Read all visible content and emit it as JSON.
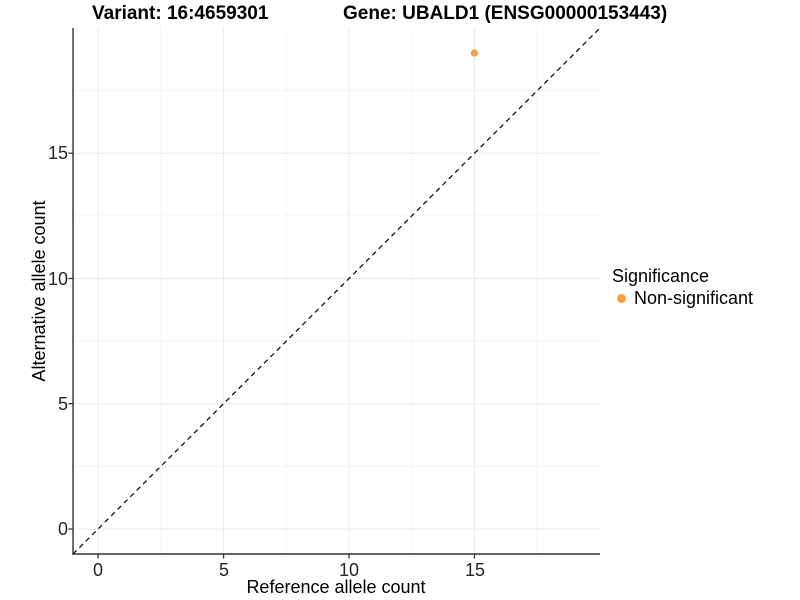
{
  "title": {
    "variant": "Variant: 16:4659301",
    "gene": "Gene: UBALD1 (ENSG00000153443)"
  },
  "axes": {
    "x": {
      "label": "Reference allele count",
      "ticks": [
        "0",
        "5",
        "10",
        "15"
      ]
    },
    "y": {
      "label": "Alternative allele count",
      "ticks": [
        "0",
        "5",
        "10",
        "15"
      ]
    }
  },
  "legend": {
    "title": "Significance",
    "items": [
      {
        "label": "Non-significant",
        "color": "#F9A242"
      }
    ]
  },
  "chart_data": {
    "type": "scatter",
    "title": "Variant: 16:4659301   Gene: UBALD1 (ENSG00000153443)",
    "xlabel": "Reference allele count",
    "ylabel": "Alternative allele count",
    "xlim": [
      -1,
      20
    ],
    "ylim": [
      -1,
      20
    ],
    "x_major_ticks": [
      0,
      5,
      10,
      15
    ],
    "y_major_ticks": [
      0,
      5,
      10,
      15
    ],
    "x_minor_ticks": [
      2.5,
      7.5,
      12.5,
      17.5
    ],
    "y_minor_ticks": [
      2.5,
      7.5,
      12.5,
      17.5
    ],
    "grid": true,
    "legend_position": "right",
    "series": [
      {
        "name": "Non-significant",
        "color": "#F9A242",
        "points": [
          [
            15,
            19
          ]
        ]
      }
    ],
    "reference_line": {
      "type": "identity y=x",
      "style": "dashed",
      "color": "#000000",
      "from": [
        -1,
        -1
      ],
      "to": [
        20,
        20
      ]
    }
  },
  "colors": {
    "background": "#FFFFFF",
    "point": "#F9A242",
    "grid_major": "#E8E8E8",
    "grid_minor": "#F3F3F3",
    "axis_line": "#333333",
    "dashed_line": "#000000"
  }
}
